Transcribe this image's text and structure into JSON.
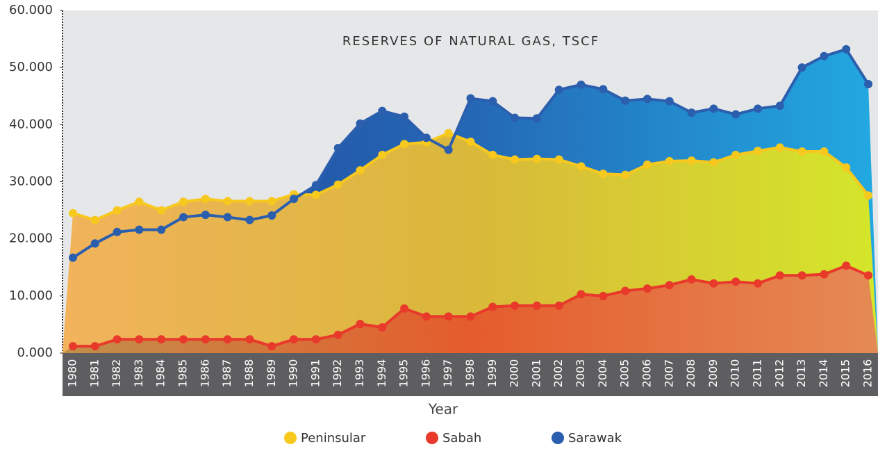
{
  "chart_data": {
    "type": "area",
    "title": "RESERVES OF NATURAL GAS, TSCF",
    "x_label": "Year",
    "categories": [
      "1980",
      "1981",
      "1982",
      "1983",
      "1984",
      "1985",
      "1986",
      "1987",
      "1988",
      "1989",
      "1990",
      "1991",
      "1992",
      "1993",
      "1994",
      "1995",
      "1996",
      "1997",
      "1998",
      "1999",
      "2000",
      "2001",
      "2002",
      "2003",
      "2004",
      "2005",
      "2006",
      "2007",
      "2008",
      "2009",
      "2010",
      "2011",
      "2012",
      "2013",
      "2014",
      "2015",
      "2016"
    ],
    "ylim": [
      0,
      60
    ],
    "yticks": [
      {
        "value": 0,
        "label": "0.000"
      },
      {
        "value": 10,
        "label": "10.000"
      },
      {
        "value": 20,
        "label": "20.000"
      },
      {
        "value": 30,
        "label": "30.000"
      },
      {
        "value": 40,
        "label": "40.000"
      },
      {
        "value": 50,
        "label": "50.000"
      },
      {
        "value": 60,
        "label": "60.000"
      }
    ],
    "series": [
      {
        "name": "Peninsular",
        "color": "#f7c81e",
        "values": [
          24.5,
          23.3,
          25.0,
          26.5,
          25.0,
          26.5,
          27.0,
          26.6,
          26.6,
          26.6,
          27.8,
          27.7,
          29.5,
          32.0,
          34.7,
          36.6,
          36.9,
          38.5,
          37.0,
          34.7,
          33.9,
          34.0,
          33.9,
          32.7,
          31.4,
          31.2,
          33.0,
          33.6,
          33.7,
          33.4,
          34.7,
          35.4,
          36.0,
          35.3,
          35.3,
          32.5,
          27.6
        ]
      },
      {
        "name": "Sabah",
        "color": "#e8392a",
        "values": [
          1.2,
          1.2,
          2.4,
          2.4,
          2.4,
          2.4,
          2.4,
          2.4,
          2.4,
          1.2,
          2.4,
          2.4,
          3.2,
          5.1,
          4.5,
          7.8,
          6.4,
          6.4,
          6.4,
          8.1,
          8.3,
          8.3,
          8.3,
          10.3,
          10.0,
          10.9,
          11.3,
          11.9,
          12.9,
          12.2,
          12.5,
          12.2,
          13.6,
          13.6,
          13.8,
          15.3,
          13.6
        ]
      },
      {
        "name": "Sarawak",
        "color": "#2b5fae",
        "values": [
          16.7,
          19.2,
          21.2,
          21.6,
          21.6,
          23.8,
          24.2,
          23.8,
          23.3,
          24.1,
          27.0,
          29.4,
          35.9,
          40.2,
          42.4,
          41.4,
          37.7,
          35.6,
          44.6,
          44.1,
          41.2,
          41.1,
          46.1,
          47.0,
          46.2,
          44.2,
          44.5,
          44.1,
          42.1,
          42.8,
          41.8,
          42.8,
          43.3,
          50.0,
          52.0,
          53.2,
          47.1
        ]
      }
    ]
  }
}
